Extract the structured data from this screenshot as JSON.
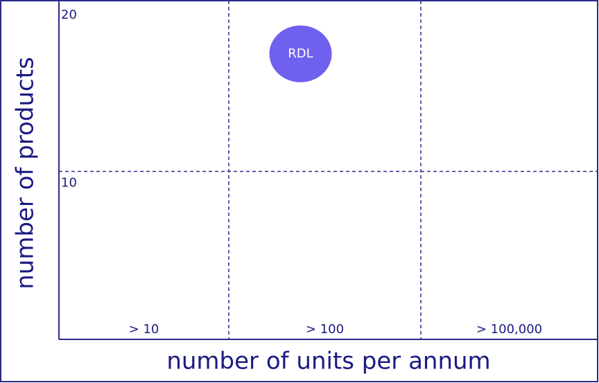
{
  "chart_data": {
    "type": "scatter",
    "xlabel": "number of units per annum",
    "ylabel": "number of products",
    "categories": [
      "> 10",
      "> 100",
      "> 100,000"
    ],
    "series": [
      {
        "name": "RDL",
        "color": "#7060ee",
        "values": [
          null,
          17,
          null
        ]
      }
    ],
    "ylim": [
      0,
      20
    ],
    "yticks": [
      10,
      20
    ],
    "grid": true
  }
}
